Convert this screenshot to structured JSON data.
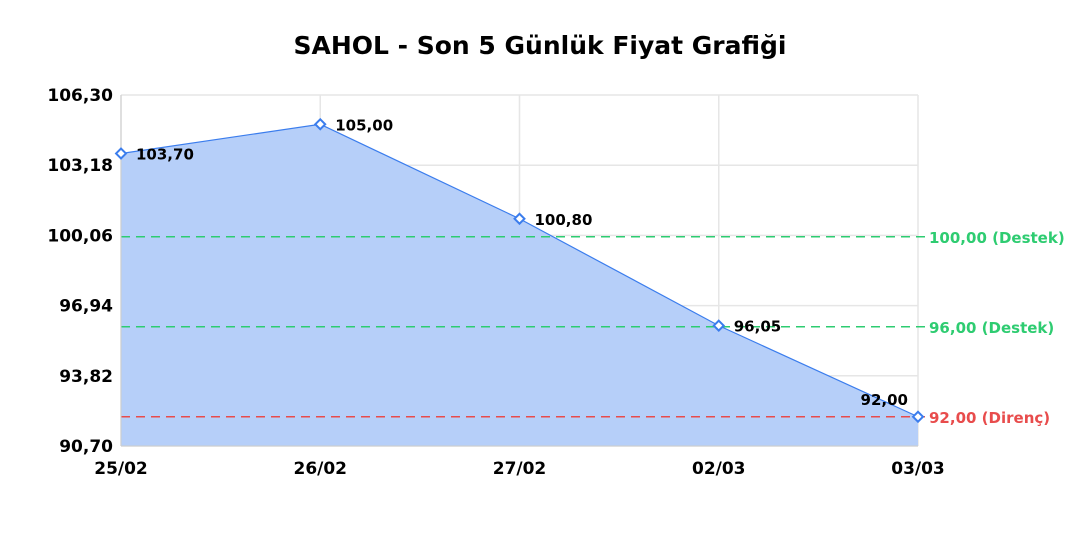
{
  "chart_data": {
    "type": "area",
    "title": "SAHOL - Son 5 Günlük Fiyat Grafiği",
    "xlabel": "",
    "ylabel": "",
    "categories": [
      "25/02",
      "26/02",
      "27/02",
      "02/03",
      "03/03"
    ],
    "values": [
      103.7,
      105.0,
      100.8,
      96.05,
      92.0
    ],
    "data_labels": [
      "103,70",
      "105,00",
      "100,80",
      "96,05",
      "92,00"
    ],
    "ylim": [
      90.7,
      106.3
    ],
    "yticks": [
      90.7,
      93.82,
      96.94,
      100.06,
      103.18,
      106.3
    ],
    "ytick_labels": [
      "90,70",
      "93,82",
      "96,94",
      "100,06",
      "103,18",
      "106,30"
    ],
    "grid": true,
    "colors": {
      "line": "#3b7ded",
      "fill": "#b6cff9",
      "support": "#2ecc71",
      "resistance": "#e84c4c"
    },
    "reference_lines": [
      {
        "value": 100.0,
        "label": "100,00 (Destek)",
        "kind": "support"
      },
      {
        "value": 96.0,
        "label": "96,00 (Destek)",
        "kind": "support"
      },
      {
        "value": 92.0,
        "label": "92,00 (Direnç)",
        "kind": "resistance"
      }
    ]
  }
}
